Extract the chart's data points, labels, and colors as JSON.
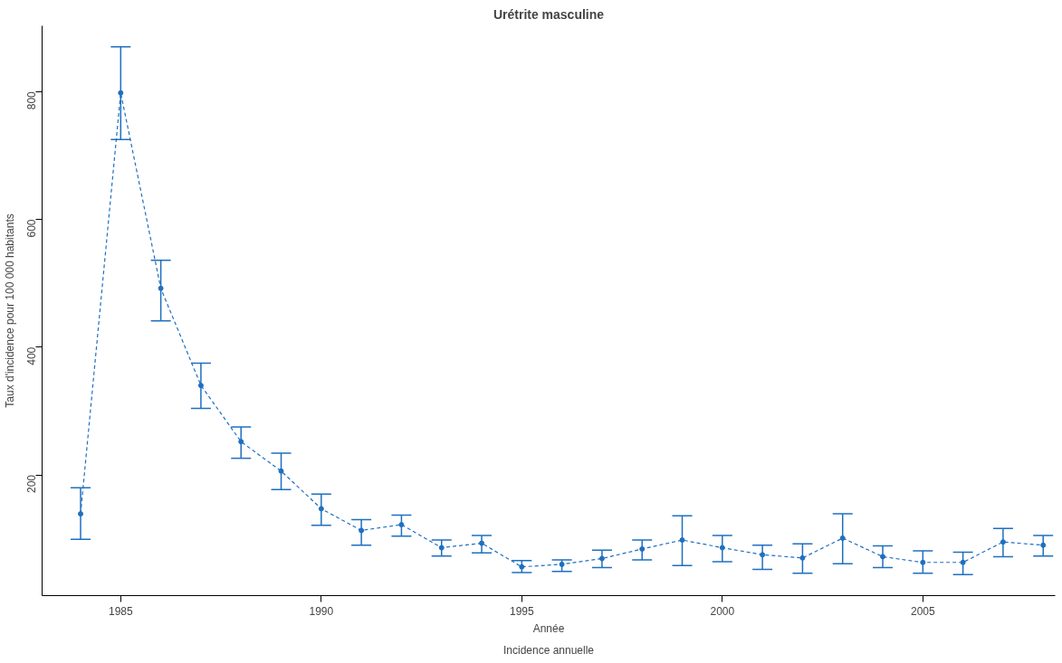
{
  "chart_data": {
    "type": "line",
    "title": "Urétrite masculine",
    "xlabel": "Année",
    "ylabel": "Taux d'incidence pour 100 000 habitants",
    "annotations": [
      "Incidence annuelle"
    ],
    "x": [
      1984,
      1985,
      1986,
      1987,
      1988,
      1989,
      1990,
      1991,
      1992,
      1993,
      1994,
      1995,
      1996,
      1997,
      1998,
      1999,
      2000,
      2001,
      2002,
      2003,
      2004,
      2005,
      2006,
      2007,
      2008
    ],
    "series": [
      {
        "color": "#1f6fc0",
        "values": [
          139,
          798,
          492,
          340,
          252,
          206,
          147,
          113,
          122,
          86,
          93,
          56,
          60,
          69,
          84,
          98,
          86,
          75,
          70,
          101,
          72,
          63,
          63,
          95,
          90
        ],
        "errors": [
          [
            99,
            180
          ],
          [
            725,
            870
          ],
          [
            441,
            536
          ],
          [
            304,
            375
          ],
          [
            226,
            275
          ],
          [
            177,
            234
          ],
          [
            121,
            170
          ],
          [
            90,
            130
          ],
          [
            104,
            137
          ],
          [
            73,
            98
          ],
          [
            78,
            105
          ],
          [
            47,
            66
          ],
          [
            49,
            67
          ],
          [
            55,
            82
          ],
          [
            67,
            98
          ],
          [
            58,
            136
          ],
          [
            64,
            105
          ],
          [
            52,
            90
          ],
          [
            46,
            92
          ],
          [
            61,
            139
          ],
          [
            55,
            89
          ],
          [
            46,
            81
          ],
          [
            44,
            79
          ],
          [
            72,
            116
          ],
          [
            73,
            105
          ]
        ]
      }
    ],
    "xlim": [
      1983.04,
      2008.3
    ],
    "ylim": [
      11,
      903
    ],
    "xticks": [
      1985,
      1990,
      1995,
      2000,
      2005
    ],
    "yticks": [
      200,
      400,
      600,
      800
    ],
    "grid": false,
    "marker": "circle",
    "line_style": "dashed"
  }
}
